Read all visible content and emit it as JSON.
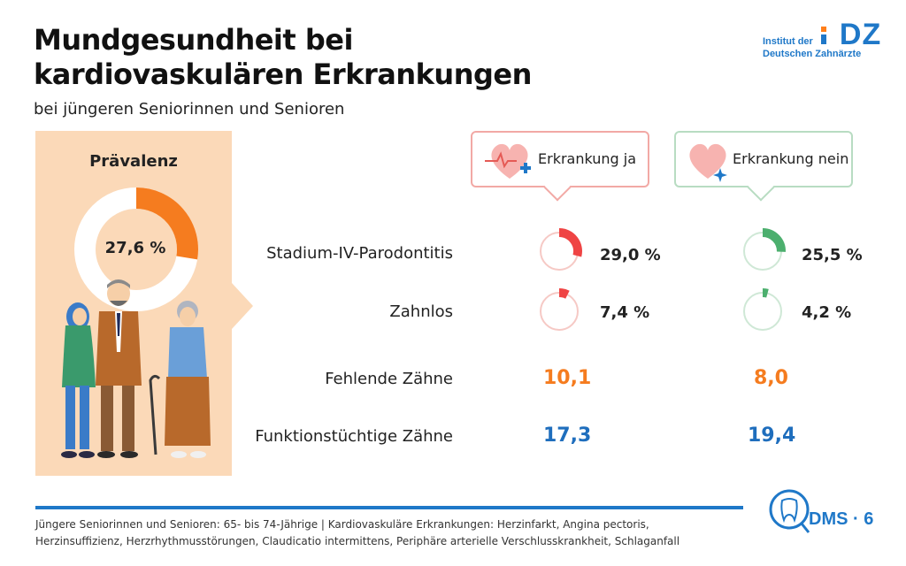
{
  "header": {
    "title_line1": "Mundgesundheit bei",
    "title_line2": "kardiovaskulären Erkrankungen",
    "subtitle": "bei jüngeren Seniorinnen und Senioren"
  },
  "logo": {
    "text_line1": "Institut der",
    "text_line2": "Deutschen Zahnärzte",
    "mark": "IDZ"
  },
  "prevalence": {
    "title": "Prävalenz",
    "value_label": "27,6 %",
    "value": 27.6
  },
  "groups": {
    "ja_label": "Erkrankung ja",
    "nein_label": "Erkrankung nein"
  },
  "rows": {
    "parodontitis_label": "Stadium-IV-Parodontitis",
    "zahnlos_label": "Zahnlos",
    "fehlende_label": "Fehlende Zähne",
    "funktion_label": "Funktionstüchtige Zähne"
  },
  "chart_data": {
    "type": "table",
    "title": "Mundgesundheit bei kardiovaskulären Erkrankungen",
    "subtitle": "bei jüngeren Seniorinnen und Senioren",
    "columns": [
      "Erkrankung ja",
      "Erkrankung nein"
    ],
    "rows": [
      {
        "label": "Stadium-IV-Parodontitis",
        "unit": "%",
        "values": [
          29.0,
          25.5
        ],
        "display": [
          "29,0 %",
          "25,5 %"
        ]
      },
      {
        "label": "Zahnlos",
        "unit": "%",
        "values": [
          7.4,
          4.2
        ],
        "display": [
          "7,4 %",
          "4,2 %"
        ]
      },
      {
        "label": "Fehlende Zähne",
        "values": [
          10.1,
          8.0
        ],
        "display": [
          "10,1",
          "8,0"
        ]
      },
      {
        "label": "Funktionstüchtige Zähne",
        "values": [
          17.3,
          19.4
        ],
        "display": [
          "17,3",
          "19,4"
        ]
      }
    ],
    "prevalence": {
      "label": "Prävalenz",
      "value": 27.6,
      "display": "27,6 %"
    }
  },
  "colors": {
    "orange": "#f57c1f",
    "red": "#ef4444",
    "green": "#4caf6e",
    "blue": "#1f6ebd",
    "peach": "#fbd9b8"
  },
  "footer": {
    "note": "Jüngere Seniorinnen und Senioren: 65- bis 74-Jährige | Kardiovaskuläre Erkrankungen: Herzinfarkt, Angina pectoris, Herzinsuffizienz, Herzrhythmusstörungen, Claudicatio intermittens, Periphäre arterielle Verschlusskrankheit, Schlaganfall",
    "dms_label": "DMS · 6"
  }
}
